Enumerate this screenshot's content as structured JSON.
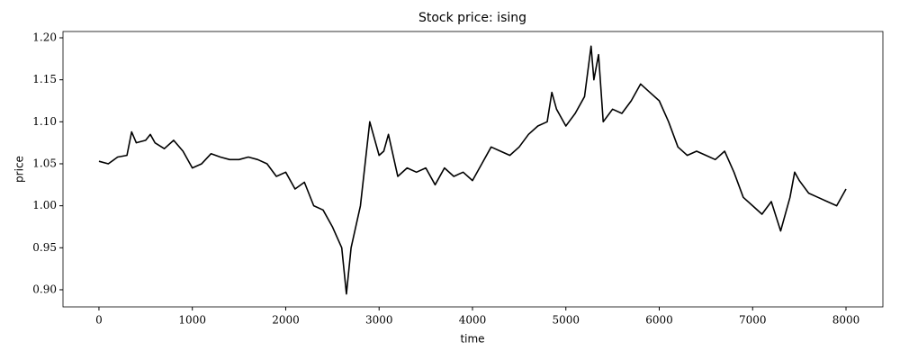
{
  "chart_data": {
    "type": "line",
    "title": "Stock price: ising",
    "x_label": "time",
    "y_label": "price",
    "x": [
      0,
      100,
      200,
      300,
      350,
      400,
      500,
      550,
      600,
      700,
      800,
      900,
      1000,
      1100,
      1200,
      1300,
      1400,
      1500,
      1600,
      1700,
      1800,
      1900,
      2000,
      2100,
      2200,
      2300,
      2400,
      2500,
      2600,
      2650,
      2700,
      2800,
      2850,
      2900,
      3000,
      3050,
      3100,
      3200,
      3300,
      3400,
      3500,
      3600,
      3700,
      3800,
      3900,
      4000,
      4100,
      4200,
      4300,
      4400,
      4500,
      4600,
      4700,
      4800,
      4850,
      4900,
      5000,
      5100,
      5200,
      5270,
      5300,
      5350,
      5400,
      5500,
      5600,
      5700,
      5800,
      5900,
      6000,
      6100,
      6200,
      6300,
      6400,
      6500,
      6600,
      6700,
      6800,
      6900,
      7000,
      7100,
      7200,
      7300,
      7400,
      7450,
      7500,
      7600,
      7700,
      7800,
      7900,
      8000
    ],
    "series": [
      {
        "color": "#000000",
        "values": [
          1.053,
          1.05,
          1.058,
          1.06,
          1.088,
          1.075,
          1.078,
          1.085,
          1.075,
          1.068,
          1.078,
          1.065,
          1.045,
          1.05,
          1.062,
          1.058,
          1.055,
          1.055,
          1.058,
          1.055,
          1.05,
          1.035,
          1.04,
          1.02,
          1.028,
          1.0,
          0.995,
          0.975,
          0.95,
          0.895,
          0.95,
          1.0,
          1.05,
          1.1,
          1.06,
          1.065,
          1.085,
          1.035,
          1.045,
          1.04,
          1.045,
          1.025,
          1.045,
          1.035,
          1.04,
          1.03,
          1.05,
          1.07,
          1.065,
          1.06,
          1.07,
          1.085,
          1.095,
          1.1,
          1.135,
          1.115,
          1.095,
          1.11,
          1.13,
          1.19,
          1.15,
          1.18,
          1.1,
          1.115,
          1.11,
          1.125,
          1.145,
          1.135,
          1.125,
          1.1,
          1.07,
          1.06,
          1.065,
          1.06,
          1.055,
          1.065,
          1.04,
          1.01,
          1.0,
          0.99,
          1.005,
          0.97,
          1.01,
          1.04,
          1.03,
          1.015,
          1.01,
          1.005,
          1.0,
          1.02
        ]
      }
    ],
    "xlim": [
      -385,
      8395
    ],
    "ylim": [
      0.8796,
      1.2075
    ],
    "xticks": [
      0,
      1000,
      2000,
      3000,
      4000,
      5000,
      6000,
      7000,
      8000
    ],
    "yticks": [
      {
        "value": 0.9,
        "label": "0.90"
      },
      {
        "value": 0.95,
        "label": "0.95"
      },
      {
        "value": 1.0,
        "label": "1.00"
      },
      {
        "value": 1.05,
        "label": "1.05"
      },
      {
        "value": 1.1,
        "label": "1.10"
      },
      {
        "value": 1.15,
        "label": "1.15"
      },
      {
        "value": 1.2,
        "label": "1.20"
      }
    ]
  }
}
